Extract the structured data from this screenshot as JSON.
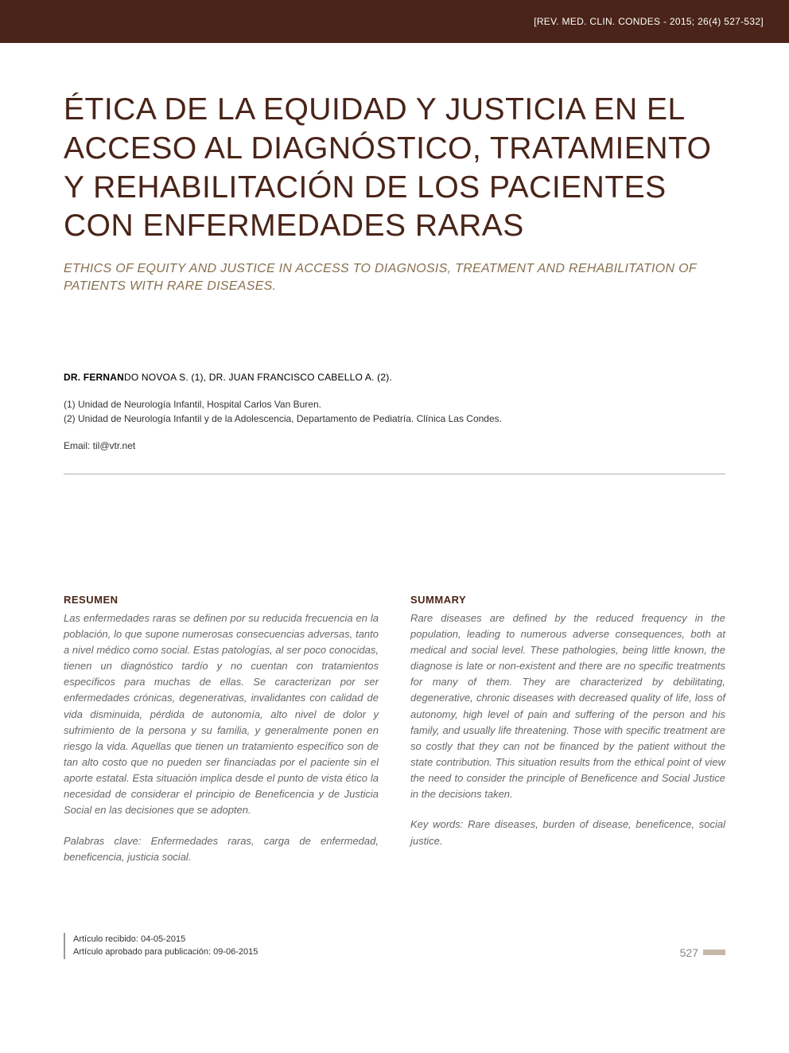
{
  "header": {
    "citation": "[REV. MED. CLIN. CONDES - 2015; 26(4) 527-532]",
    "bg_color": "#4a2418",
    "text_color": "#ffffff"
  },
  "title": {
    "main": "ÉTICA DE LA EQUIDAD Y JUSTICIA EN EL ACCESO AL DIAGNÓSTICO, TRATAMIENTO Y REHABILITACIÓN DE LOS PACIENTES CON ENFERMEDADES RARAS",
    "sub": "ETHICS OF EQUITY AND JUSTICE IN ACCESS TO DIAGNOSIS, TREATMENT AND REHABILITATION OF PATIENTS WITH RARE DISEASES.",
    "main_color": "#4a2418",
    "sub_color": "#8a7050",
    "main_fontsize": 39,
    "sub_fontsize": 16
  },
  "authors": {
    "line": "DR. FERNANDO NOVOA S. (1), DR. JUAN FRANCISCO CABELLO A. (2).",
    "bold_prefix": "DR. FERNAN"
  },
  "affiliations": {
    "line1": "(1) Unidad de Neurología Infantil, Hospital Carlos Van Buren.",
    "line2": "(2) Unidad de Neurología Infantil y de la Adolescencia, Departamento de Pediatría. Clínica Las Condes."
  },
  "email": {
    "label": "Email: til@vtr.net"
  },
  "abstracts": {
    "left": {
      "heading": "RESUMEN",
      "body": "Las enfermedades raras se definen por su reducida frecuencia en la población, lo que supone numerosas consecuencias adversas, tanto a nivel médico como social. Estas patologías, al ser poco conocidas, tienen un diagnóstico tardío y no cuentan con tratamientos específicos para muchas de ellas. Se caracterizan por ser enfermedades crónicas, degenerativas, invalidantes con calidad de vida disminuida, pérdida de autonomía, alto nivel de dolor y sufrimiento de la persona y su familia, y generalmente ponen en riesgo la vida. Aquellas que tienen un tratamiento específico son de tan alto costo que no pueden ser financiadas por el paciente sin el aporte estatal. Esta situación implica desde el punto de vista ético la necesidad de considerar el principio de Beneficencia y de Justicia Social en las decisiones que se adopten.",
      "keywords": "Palabras clave: Enfermedades raras, carga de enfermedad, beneficencia, justicia social."
    },
    "right": {
      "heading": "SUMMARY",
      "body": "Rare diseases are defined by the reduced frequency in the population, leading to numerous adverse consequences, both at medical and social level. These pathologies, being little known, the diagnose is late or non-existent and there are no specific treatments for many of them. They are characterized by debilitating, degenerative, chronic diseases with decreased quality of life, loss of autonomy, high level of pain and suffering of the person and his family, and usually life threatening. Those with specific treatment are so costly that they can not be financed by the patient without the state contribution. This situation results from the ethical point of view the need to consider the principle of Beneficence and Social Justice in the decisions taken.",
      "keywords": "Key words: Rare diseases, burden of disease, beneficence, social justice."
    },
    "heading_color": "#4a2418",
    "body_color": "#666666"
  },
  "footer": {
    "received": "Artículo recibido: 04-05-2015",
    "approved": "Artículo aprobado para publicación: 09-06-2015",
    "page_number": "527",
    "bar_color": "#c4b8a8"
  }
}
